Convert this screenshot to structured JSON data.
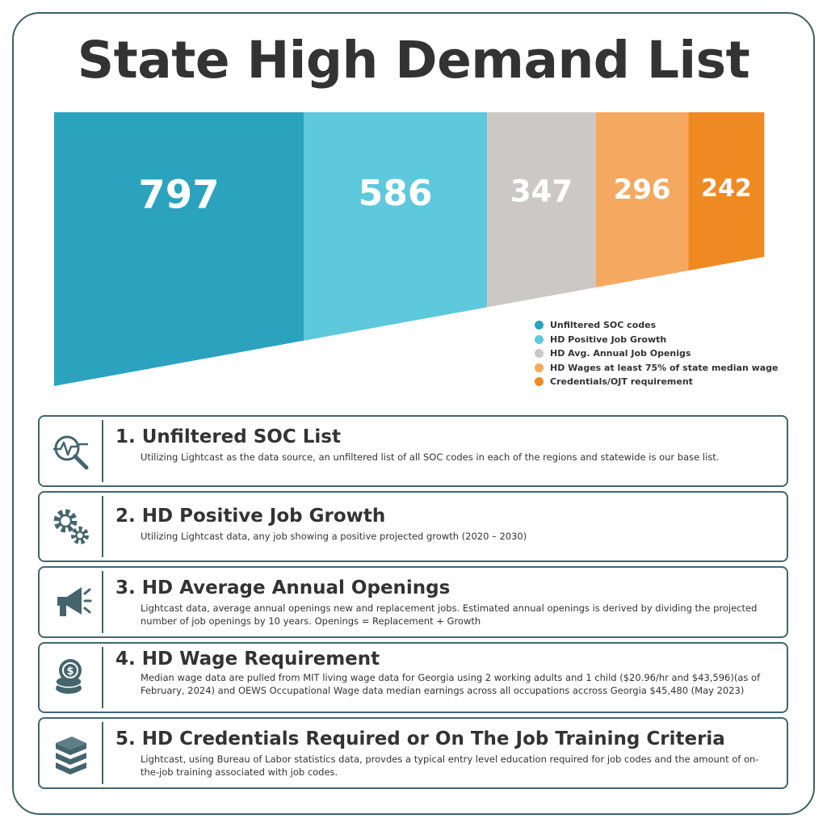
{
  "title": "State High Demand List",
  "chart_data": {
    "type": "bar",
    "title": "State High Demand List",
    "categories": [
      "Unfiltered SOC codes",
      "HD Positive Job Growth",
      "HD Avg. Annual Job Openigs",
      "HD Wages at least 75% of state median wage",
      "Credentials/OJT requirement"
    ],
    "values": [
      797,
      586,
      347,
      296,
      242
    ],
    "colors": [
      "#2ba3bf",
      "#5ec8dc",
      "#cbc8c7",
      "#f5a85f",
      "#ef8a22"
    ],
    "legend_position": "bottom-right"
  },
  "legend": [
    {
      "label": "Unfiltered SOC codes",
      "color": "#2ba3bf"
    },
    {
      "label": "HD Positive Job Growth",
      "color": "#5ec8dc"
    },
    {
      "label": "HD Avg. Annual Job Openigs",
      "color": "#cbc8c7"
    },
    {
      "label": "HD Wages at least 75% of state median wage",
      "color": "#f5a85f"
    },
    {
      "label": "Credentials/OJT requirement",
      "color": "#ef8a22"
    }
  ],
  "steps": [
    {
      "title": "1. Unfiltered SOC List",
      "text": "Utilizing Lightcast as the data source, an unfiltered list of all SOC codes in each of the regions and statewide is our base list.",
      "icon": "magnifier-chart-icon"
    },
    {
      "title": "2. HD Positive Job Growth",
      "text": "Utilizing Lightcast data, any job showing a positive projected growth (2020 – 2030)",
      "icon": "gears-icon"
    },
    {
      "title": "3. HD Average Annual Openings",
      "text": "Lightcast data, average annual openings new and replacement jobs. Estimated annual openings is derived by dividing the projected number of job openings by 10 years. Openings = Replacement + Growth",
      "icon": "megaphone-icon"
    },
    {
      "title": "4. HD Wage Requirement",
      "text": "Median wage data are pulled from MIT living wage data for Georgia using 2 working adults and 1 child ($20.96/hr and $43,596)(as of February, 2024) and OEWS Occupational Wage data median earnings across all occupations accross Georgia $45,480 (May 2023)",
      "icon": "coins-icon"
    },
    {
      "title": "5. HD Credentials Required or On The Job Training Criteria",
      "text": "Lightcast, using Bureau of Labor statistics data, provdes a typical entry level education required for job codes and the amount of on-the-job training associated with job codes.",
      "icon": "books-icon"
    }
  ]
}
